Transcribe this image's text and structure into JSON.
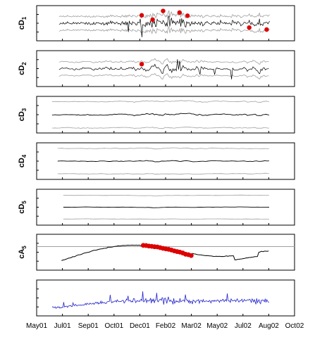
{
  "chart_data": [
    {
      "type": "line",
      "panel": "cD1",
      "ylabel_main": "cD",
      "ylabel_sub": "1",
      "style": "high-frequency detail with confidence band",
      "signal_color": "#000000",
      "band_color": "#a0a0a0",
      "marker_color": "#dd0000",
      "marker_x": [
        "2001-11-28",
        "2001-12-20",
        "2002-01-10",
        "2002-02-12",
        "2002-02-28",
        "2002-07-02",
        "2002-08-06"
      ],
      "marker_y": [
        1.0,
        0.45,
        1.55,
        1.35,
        0.95,
        -0.55,
        -0.8
      ]
    },
    {
      "type": "line",
      "panel": "cD2",
      "ylabel_main": "cD",
      "ylabel_sub": "2",
      "style": "detail with confidence band",
      "signal_color": "#000000",
      "band_color": "#a0a0a0",
      "marker_color": "#dd0000",
      "marker_x": [
        "2001-11-28"
      ],
      "marker_y": [
        0.55
      ]
    },
    {
      "type": "line",
      "panel": "cD3",
      "ylabel_main": "cD",
      "ylabel_sub": "3",
      "style": "detail with confidence band",
      "signal_color": "#000000",
      "band_color": "#a0a0a0"
    },
    {
      "type": "line",
      "panel": "cD4",
      "ylabel_main": "cD",
      "ylabel_sub": "4",
      "style": "detail with confidence band",
      "signal_color": "#000000",
      "band_color": "#a0a0a0"
    },
    {
      "type": "line",
      "panel": "cD5",
      "ylabel_main": "cD",
      "ylabel_sub": "5",
      "style": "detail with confidence band",
      "signal_color": "#000000",
      "band_color": "#a0a0a0"
    },
    {
      "type": "line",
      "panel": "cA5",
      "ylabel_main": "cA",
      "ylabel_sub": "5",
      "style": "approximation with threshold line",
      "signal_color": "#000000",
      "threshold_color": "#a0a0a0",
      "marker_color": "#dd0000",
      "highlight_x_range": [
        "2001-12-01",
        "2002-03-10"
      ]
    },
    {
      "type": "line",
      "panel": "raw",
      "ylabel_main": "",
      "ylabel_sub": "",
      "style": "original series",
      "signal_color": "#2222cc"
    }
  ],
  "x_axis": {
    "tick_labels": [
      "May01",
      "Jul01",
      "Sep01",
      "Oct01",
      "Dec01",
      "Feb02",
      "Mar02",
      "May02",
      "Jul02",
      "Aug02",
      "Oct02"
    ],
    "range": [
      "2001-05-01",
      "2002-10-01"
    ],
    "grid": false
  }
}
